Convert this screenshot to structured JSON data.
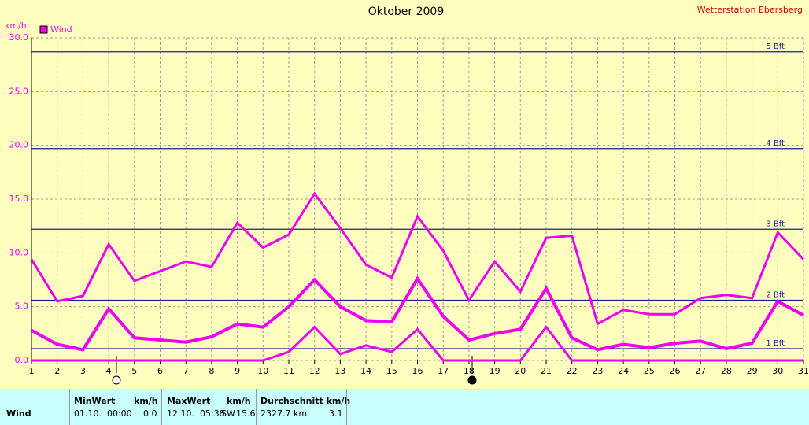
{
  "chart_data": {
    "type": "line",
    "title": "Oktober 2009",
    "subtitle": "Wetterstation Ebersberg",
    "y_label": "km/h",
    "x": [
      1,
      2,
      3,
      4,
      5,
      6,
      7,
      8,
      9,
      10,
      11,
      12,
      13,
      14,
      15,
      16,
      17,
      18,
      19,
      20,
      21,
      22,
      23,
      24,
      25,
      26,
      27,
      28,
      29,
      30,
      31
    ],
    "xlim": [
      1,
      31
    ],
    "xticks": [
      1,
      2,
      3,
      4,
      5,
      6,
      7,
      8,
      9,
      10,
      11,
      12,
      13,
      14,
      15,
      16,
      17,
      18,
      19,
      20,
      21,
      22,
      23,
      24,
      25,
      26,
      27,
      28,
      29,
      30,
      31
    ],
    "ylim": [
      0,
      30
    ],
    "yticks": [
      {
        "value": 0,
        "label": "0.0"
      },
      {
        "value": 5,
        "label": "5.0"
      },
      {
        "value": 10,
        "label": "10.0"
      },
      {
        "value": 15,
        "label": "15.0"
      },
      {
        "value": 20,
        "label": "20.0"
      },
      {
        "value": 25,
        "label": "25.0"
      },
      {
        "value": 30,
        "label": "30.0"
      }
    ],
    "grid": true,
    "legend": "top-left",
    "series": [
      {
        "name": "Wind",
        "color": "#ee00ee",
        "values": [
          9.4,
          5.5,
          6.0,
          10.8,
          7.4,
          8.3,
          9.2,
          8.7,
          12.8,
          10.5,
          11.7,
          15.5,
          12.3,
          8.9,
          7.7,
          13.4,
          10.2,
          5.6,
          9.2,
          6.4,
          11.4,
          11.6,
          3.4,
          4.7,
          4.3,
          4.3,
          5.8,
          6.1,
          5.8,
          11.9,
          9.4
        ]
      },
      {
        "color": "#ee00ee",
        "values": [
          2.8,
          1.5,
          1.0,
          4.8,
          2.1,
          1.9,
          1.7,
          2.2,
          3.4,
          3.1,
          5.0,
          7.5,
          5.0,
          3.7,
          3.6,
          7.6,
          4.1,
          1.9,
          2.5,
          2.9,
          6.7,
          2.1,
          1.0,
          1.5,
          1.2,
          1.6,
          1.8,
          1.1,
          1.6,
          5.5,
          4.2
        ]
      },
      {
        "color": "#ee00ee",
        "values": [
          0,
          0,
          0,
          0,
          0,
          0,
          0,
          0,
          0,
          0,
          0.8,
          3.1,
          0.6,
          1.4,
          0.8,
          2.9,
          0,
          0,
          0,
          0,
          3.1,
          0,
          0,
          0,
          0,
          0,
          0,
          0,
          0,
          0,
          0
        ]
      }
    ],
    "reference_lines": [
      {
        "value": 1.1,
        "label": "1 Bft"
      },
      {
        "value": 5.6,
        "label": "2 Bft"
      },
      {
        "value": 12.2,
        "label": "3 Bft"
      },
      {
        "value": 19.7,
        "label": "4 Bft"
      },
      {
        "value": 28.7,
        "label": "5 Bft"
      }
    ]
  },
  "table": {
    "row_label": "Wind",
    "headers": [
      [
        "MinWert",
        "km/h"
      ],
      [
        "MaxWert",
        "km/h"
      ],
      [
        "Durchschnitt km/h"
      ]
    ],
    "cells": [
      [
        "01.10.  00:00",
        "0.0"
      ],
      [
        "12.10.  05:38",
        "SW",
        "15.6"
      ],
      [
        "2327.7 km",
        "3.1"
      ]
    ]
  }
}
